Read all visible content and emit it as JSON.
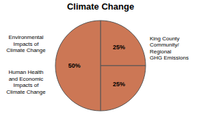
{
  "chart_data": {
    "type": "pie",
    "title": "Climate Change",
    "values": [
      25,
      25,
      50
    ],
    "value_labels": [
      "25%",
      "25%",
      "50%"
    ],
    "data_labels": true,
    "colors": [
      "#cc7755",
      "#cc7755",
      "#cc7755"
    ],
    "annotations": [
      "Environmental\nImpacts of\nClimate Change",
      "Human Health\nand Economic\nImpacts of\nClimate Change",
      "King County\nCommunity/\nRegional\nGHG Emissions"
    ]
  }
}
